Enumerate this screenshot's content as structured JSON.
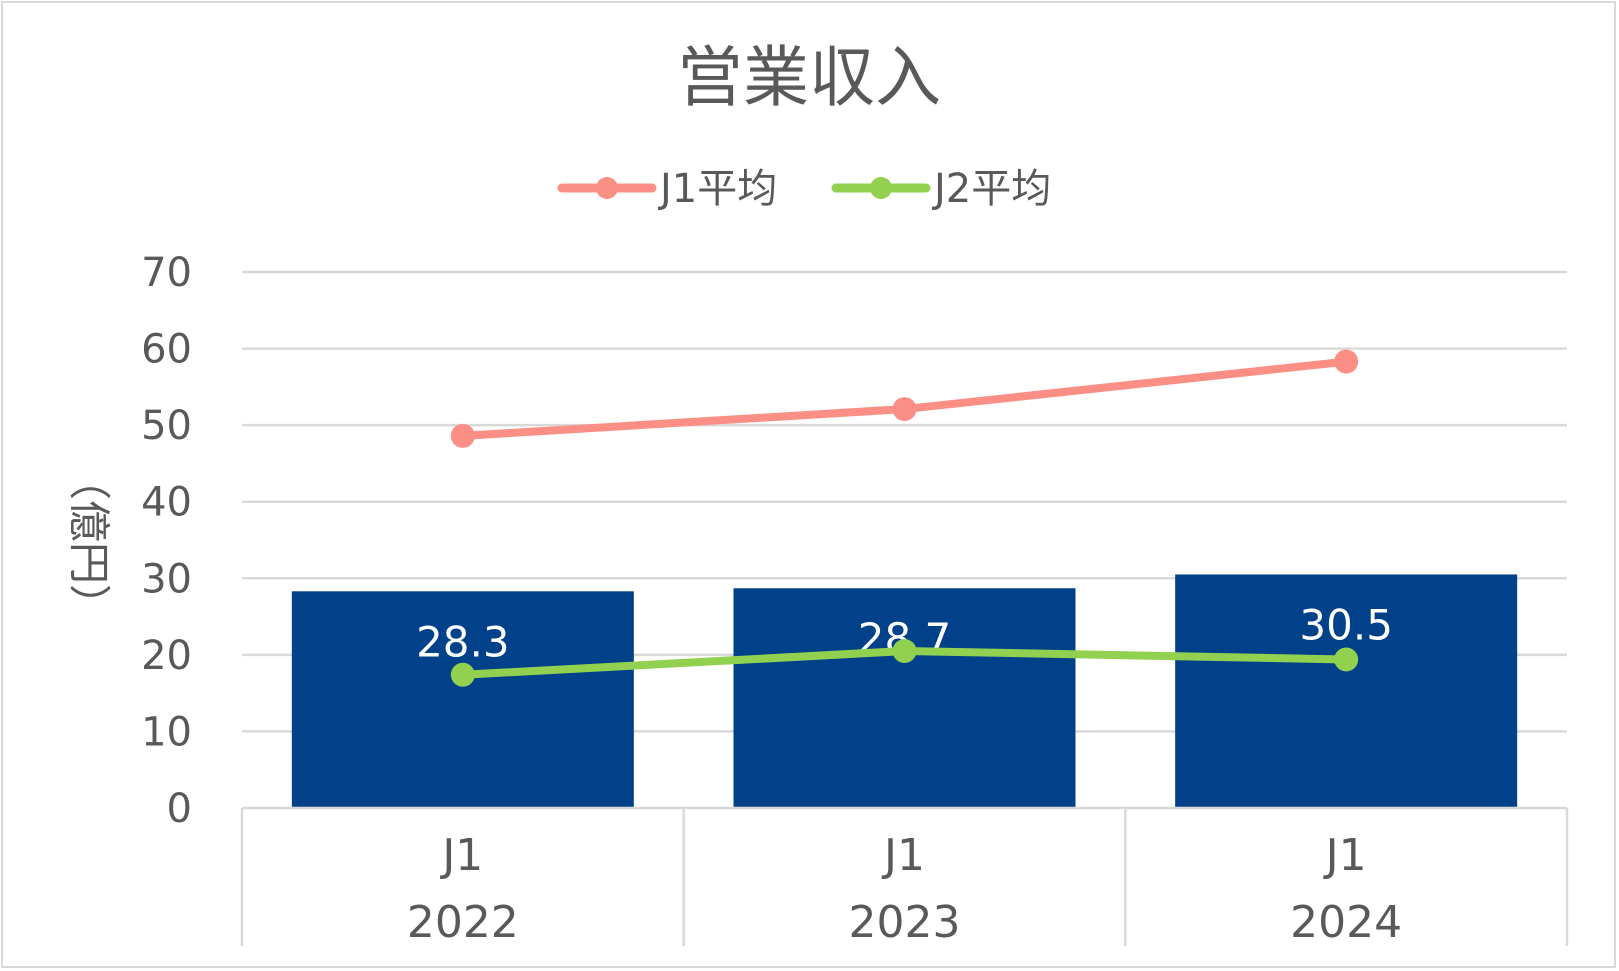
{
  "chart_data": {
    "type": "bar",
    "title": "営業収入",
    "ylabel": "（億円）",
    "ylim": [
      0,
      70
    ],
    "yticks": [
      0,
      10,
      20,
      30,
      40,
      50,
      60,
      70
    ],
    "categories": [
      {
        "division": "J1",
        "year": "2022"
      },
      {
        "division": "J1",
        "year": "2023"
      },
      {
        "division": "J1",
        "year": "2024"
      }
    ],
    "bars": {
      "values": [
        28.3,
        28.7,
        30.5
      ],
      "labels": [
        "28.3",
        "28.7",
        "30.5"
      ],
      "color": "#004189"
    },
    "series": [
      {
        "name": "J1平均",
        "type": "line",
        "values": [
          48.6,
          52.1,
          58.3
        ],
        "color": "#fb8f85"
      },
      {
        "name": "J2平均",
        "type": "line",
        "values": [
          17.4,
          20.5,
          19.4
        ],
        "color": "#92d050"
      }
    ],
    "grid": true,
    "legend_position": "top"
  }
}
